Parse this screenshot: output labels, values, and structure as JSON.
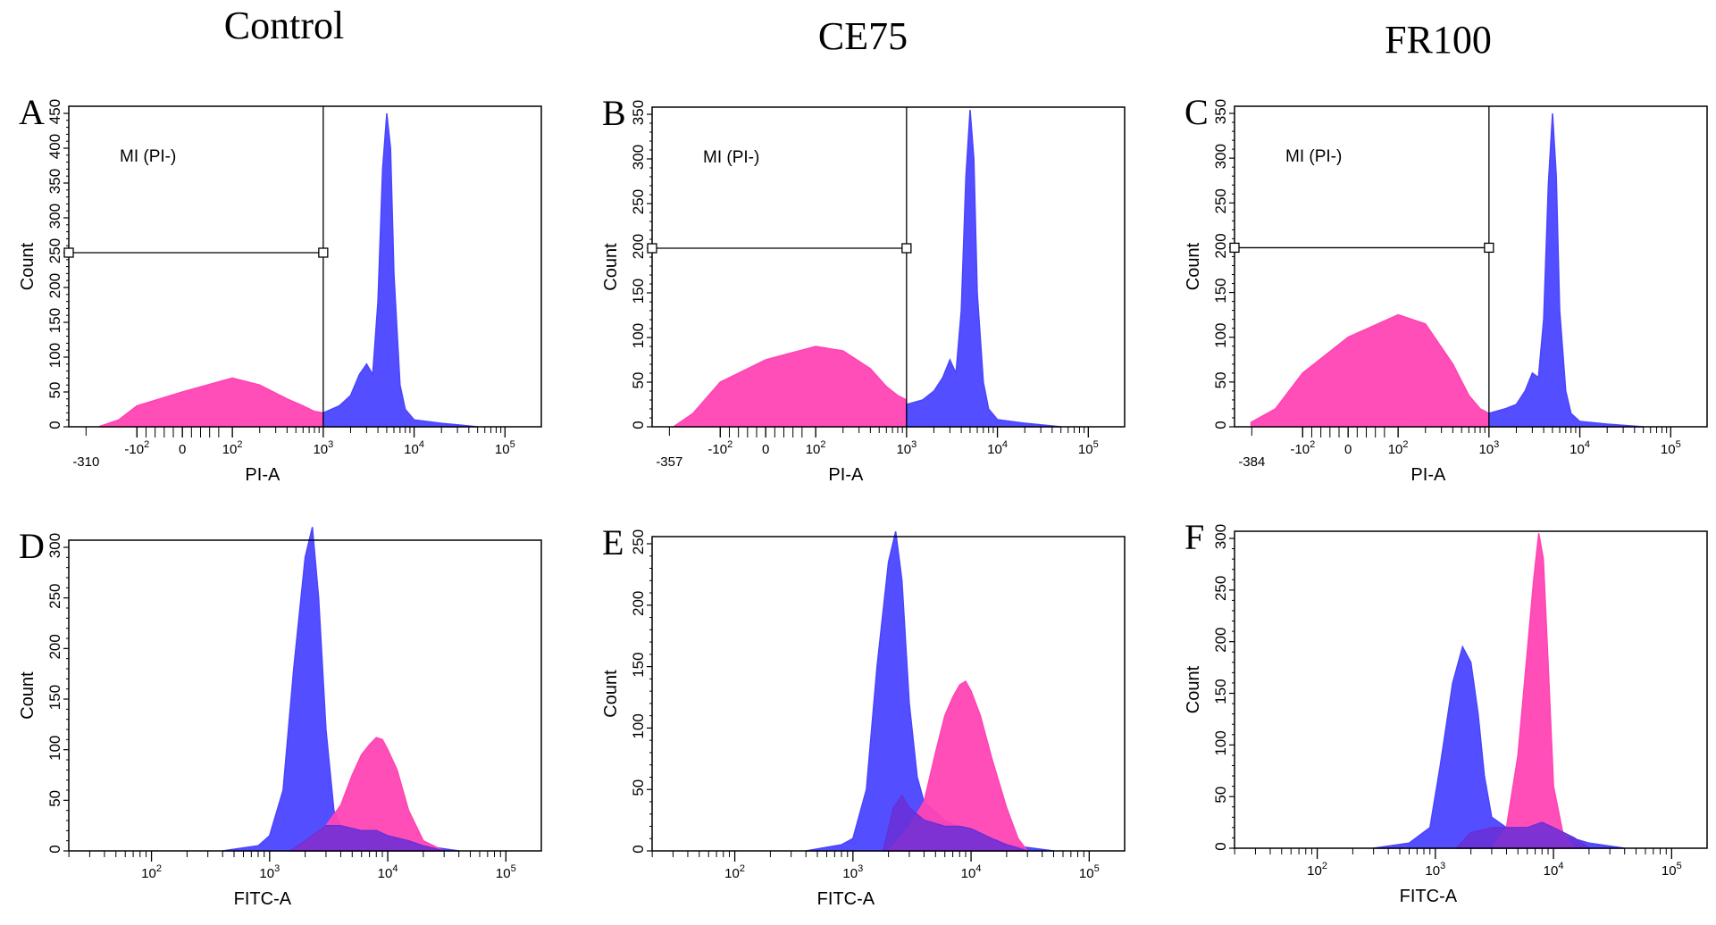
{
  "colors": {
    "gated": "#ff44b4",
    "ungated": "#4a45ff",
    "overlap": "#6a2fd6"
  },
  "column_titles": [
    "Control",
    "CE75",
    "FR100"
  ],
  "chart_data": [
    {
      "panel": "A",
      "type": "area",
      "xlabel": "PI-A",
      "ylabel": "Count",
      "ylim": [
        0,
        450
      ],
      "yticks": [
        0,
        50,
        100,
        150,
        200,
        250,
        300,
        350,
        400,
        450
      ],
      "xmin_label": "-310",
      "xticks": [
        "-10^2",
        "0",
        "10^2",
        "10^3",
        "10^4",
        "10^5"
      ],
      "gate": {
        "label": "MI (PI-)",
        "y": 250,
        "x_end": "10^3"
      },
      "series": [
        {
          "name": "MI (PI-)",
          "color": "gated",
          "x": [
            -310,
            -200,
            -100,
            0,
            100,
            200,
            400,
            600,
            800,
            1000
          ],
          "y": [
            0,
            10,
            30,
            50,
            70,
            60,
            40,
            30,
            22,
            20
          ]
        },
        {
          "color": "ungated",
          "x": [
            1000,
            1500,
            2000,
            2500,
            3000,
            3500,
            4000,
            4500,
            5000,
            5500,
            6000,
            7000,
            8000,
            10000,
            20000,
            50000
          ],
          "y": [
            20,
            30,
            45,
            75,
            90,
            75,
            180,
            370,
            450,
            400,
            220,
            60,
            25,
            10,
            5,
            0
          ]
        }
      ]
    },
    {
      "panel": "B",
      "type": "area",
      "xlabel": "PI-A",
      "ylabel": "Count",
      "ylim": [
        0,
        350
      ],
      "yticks": [
        0,
        50,
        100,
        150,
        200,
        250,
        300,
        350
      ],
      "xmin_label": "-357",
      "xticks": [
        "-10^2",
        "0",
        "10^2",
        "10^3",
        "10^4",
        "10^5"
      ],
      "gate": {
        "label": "MI (PI-)",
        "y": 200,
        "x_end": "10^3"
      },
      "series": [
        {
          "name": "MI (PI-)",
          "color": "gated",
          "x": [
            -357,
            -250,
            -100,
            0,
            100,
            200,
            400,
            600,
            800,
            1000
          ],
          "y": [
            0,
            15,
            50,
            75,
            90,
            85,
            65,
            45,
            35,
            30
          ]
        },
        {
          "color": "ungated",
          "x": [
            1000,
            1500,
            2000,
            2500,
            3000,
            3500,
            4000,
            4500,
            5000,
            5500,
            6000,
            7000,
            8000,
            10000,
            20000,
            50000
          ],
          "y": [
            25,
            30,
            40,
            55,
            75,
            60,
            130,
            280,
            355,
            300,
            150,
            50,
            20,
            8,
            4,
            0
          ]
        }
      ]
    },
    {
      "panel": "C",
      "type": "area",
      "xlabel": "PI-A",
      "ylabel": "Count",
      "ylim": [
        0,
        350
      ],
      "yticks": [
        0,
        50,
        100,
        150,
        200,
        250,
        300,
        350
      ],
      "xmin_label": "-384",
      "xticks": [
        "-10^2",
        "0",
        "10^2",
        "10^3",
        "10^4",
        "10^5"
      ],
      "gate": {
        "label": "MI (PI-)",
        "y": 200,
        "x_end": "10^3"
      },
      "series": [
        {
          "name": "MI (PI-)",
          "color": "gated",
          "x": [
            -384,
            -250,
            -100,
            0,
            100,
            200,
            400,
            600,
            800,
            1000
          ],
          "y": [
            5,
            20,
            60,
            100,
            125,
            115,
            70,
            35,
            20,
            15
          ]
        },
        {
          "color": "ungated",
          "x": [
            1000,
            1500,
            2000,
            2500,
            3000,
            3500,
            4000,
            4500,
            5000,
            5500,
            6000,
            7000,
            8000,
            10000,
            20000,
            50000
          ],
          "y": [
            15,
            20,
            25,
            40,
            60,
            55,
            120,
            270,
            350,
            280,
            130,
            40,
            15,
            6,
            3,
            0
          ]
        }
      ]
    },
    {
      "panel": "D",
      "type": "area",
      "xlabel": "FITC-A",
      "ylabel": "Count",
      "ylim": [
        0,
        300
      ],
      "yticks": [
        0,
        50,
        100,
        150,
        200,
        250,
        300
      ],
      "xticks": [
        "10^2",
        "10^3",
        "10^4",
        "10^5"
      ],
      "series": [
        {
          "color": "ungated",
          "x": [
            400,
            800,
            1000,
            1300,
            1600,
            2000,
            2300,
            2600,
            3000,
            3500,
            4000,
            6000,
            10000,
            20000,
            40000
          ],
          "y": [
            0,
            5,
            15,
            60,
            180,
            290,
            320,
            250,
            120,
            40,
            25,
            20,
            15,
            5,
            0
          ]
        },
        {
          "color": "gated",
          "x": [
            1500,
            2000,
            3000,
            4000,
            5000,
            6000,
            7000,
            8000,
            9000,
            10000,
            12000,
            15000,
            20000,
            30000
          ],
          "y": [
            0,
            10,
            25,
            45,
            75,
            95,
            105,
            112,
            110,
            100,
            80,
            40,
            10,
            0
          ]
        },
        {
          "color": "overlap",
          "x": [
            1500,
            2000,
            3000,
            4000,
            6000,
            8000,
            10000,
            15000,
            20000,
            30000
          ],
          "y": [
            0,
            10,
            25,
            25,
            20,
            20,
            15,
            10,
            5,
            0
          ]
        }
      ]
    },
    {
      "panel": "E",
      "type": "area",
      "xlabel": "FITC-A",
      "ylabel": "Count",
      "ylim": [
        0,
        250
      ],
      "yticks": [
        0,
        50,
        100,
        150,
        200,
        250
      ],
      "xticks": [
        "10^2",
        "10^3",
        "10^4",
        "10^5"
      ],
      "series": [
        {
          "color": "ungated",
          "x": [
            400,
            800,
            1000,
            1300,
            1600,
            2000,
            2300,
            2600,
            3000,
            3500,
            4000,
            6000,
            10000,
            20000,
            50000
          ],
          "y": [
            0,
            5,
            10,
            50,
            150,
            235,
            260,
            220,
            120,
            60,
            40,
            25,
            15,
            5,
            0
          ]
        },
        {
          "color": "gated",
          "x": [
            2000,
            3000,
            4000,
            5000,
            6000,
            7000,
            8000,
            9000,
            10000,
            12000,
            15000,
            20000,
            25000,
            30000
          ],
          "y": [
            0,
            20,
            40,
            80,
            110,
            125,
            135,
            138,
            130,
            110,
            75,
            35,
            10,
            0
          ]
        },
        {
          "color": "overlap",
          "x": [
            1800,
            2200,
            2600,
            3000,
            4000,
            6000,
            8000,
            10000,
            15000,
            20000,
            30000
          ],
          "y": [
            0,
            35,
            45,
            35,
            25,
            20,
            20,
            18,
            10,
            5,
            0
          ]
        }
      ]
    },
    {
      "panel": "F",
      "type": "area",
      "xlabel": "FITC-A",
      "ylabel": "Count",
      "ylim": [
        0,
        300
      ],
      "yticks": [
        0,
        50,
        100,
        150,
        200,
        250,
        300
      ],
      "xticks": [
        "10^2",
        "10^3",
        "10^4",
        "10^5"
      ],
      "series": [
        {
          "color": "ungated",
          "x": [
            300,
            600,
            900,
            1100,
            1400,
            1700,
            2000,
            2300,
            2600,
            3000,
            4000,
            6000,
            10000,
            20000,
            40000
          ],
          "y": [
            0,
            5,
            20,
            80,
            160,
            195,
            180,
            130,
            70,
            30,
            20,
            15,
            15,
            5,
            0
          ]
        },
        {
          "color": "gated",
          "x": [
            3000,
            4000,
            5000,
            6000,
            6800,
            7500,
            8200,
            9000,
            10000,
            12000,
            15000
          ],
          "y": [
            0,
            20,
            90,
            190,
            260,
            305,
            280,
            180,
            60,
            15,
            0
          ]
        },
        {
          "color": "overlap",
          "x": [
            1500,
            2000,
            3000,
            4000,
            6000,
            8000,
            10000,
            15000,
            20000
          ],
          "y": [
            0,
            15,
            20,
            20,
            20,
            25,
            20,
            10,
            0
          ]
        }
      ]
    }
  ]
}
